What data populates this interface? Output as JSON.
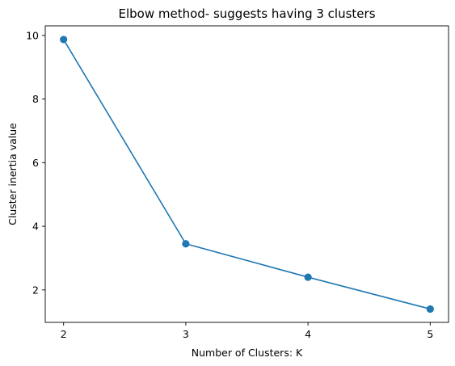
{
  "chart_data": {
    "type": "line",
    "title": "Elbow method- suggests having 3 clusters",
    "xlabel": "Number of Clusters: K",
    "ylabel": "Cluster inertia value",
    "x": [
      2,
      3,
      4,
      5
    ],
    "series": [
      {
        "values": [
          9.87,
          3.45,
          2.4,
          1.4
        ],
        "color": "#1f77b4",
        "marker": "circle"
      }
    ],
    "xlim": [
      1.85,
      5.15
    ],
    "ylim": [
      0.98,
      10.3
    ],
    "xticks": [
      "2",
      "3",
      "4",
      "5"
    ],
    "yticks": [
      "2",
      "4",
      "6",
      "8",
      "10"
    ],
    "grid": false,
    "legend": "none"
  }
}
